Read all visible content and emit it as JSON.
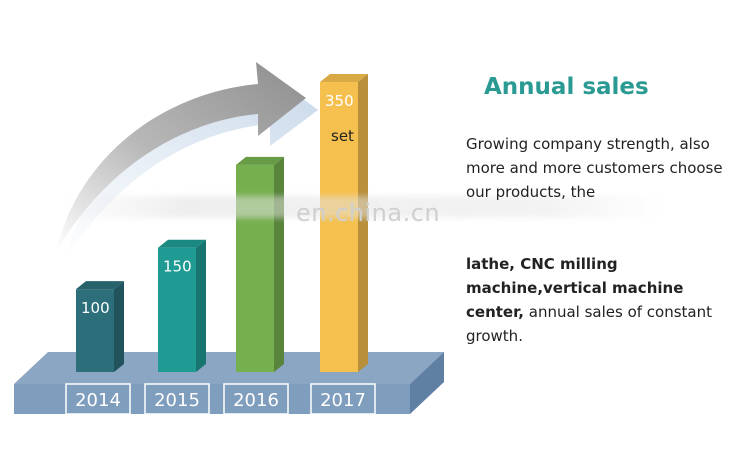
{
  "title": "Annual sales",
  "description": {
    "line1": "Growing company strength, also more and more customers choose our products, the",
    "bold_part": "lathe, CNC milling machine,vertical machine center,",
    "line2_rest": " annual sales of constant growth."
  },
  "watermark": "en.china.cn",
  "colors": {
    "title": "#2a9a92",
    "platform_top": "#8ba6c2",
    "platform_front": "#7d9bbd",
    "arrow": "#9e9e9e"
  },
  "chart_data": {
    "type": "bar",
    "categories": [
      "2014",
      "2015",
      "2016",
      "2017"
    ],
    "values": [
      100,
      150,
      250,
      350
    ],
    "data_labels": [
      "100",
      "150",
      "",
      "350"
    ],
    "unit_label": "set",
    "bar_colors": [
      "#2c6f7a",
      "#1f9b94",
      "#76b04e",
      "#f5c04e"
    ],
    "ylim": [
      0,
      350
    ]
  }
}
